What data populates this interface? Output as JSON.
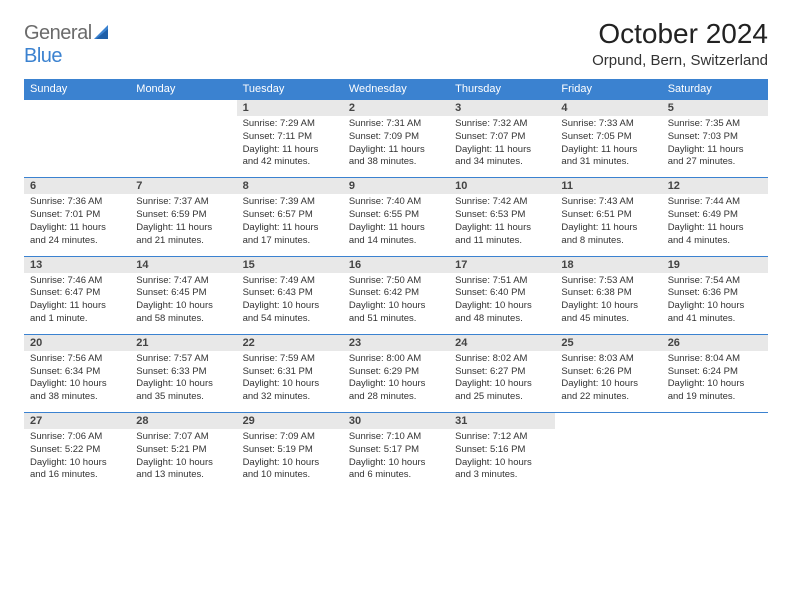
{
  "logo": {
    "part1": "General",
    "part2": "Blue"
  },
  "title": "October 2024",
  "location": "Orpund, Bern, Switzerland",
  "colors": {
    "header_bg": "#3b82d0",
    "header_text": "#ffffff",
    "daynum_bg": "#e8e8e8",
    "border": "#3b82d0",
    "text": "#333333",
    "logo_gray": "#6b6b6b",
    "logo_blue": "#3b82d0",
    "background": "#ffffff"
  },
  "typography": {
    "title_fontsize": 28,
    "location_fontsize": 15,
    "weekday_fontsize": 11,
    "daynum_fontsize": 11,
    "body_fontsize": 9.5
  },
  "weekdays": [
    "Sunday",
    "Monday",
    "Tuesday",
    "Wednesday",
    "Thursday",
    "Friday",
    "Saturday"
  ],
  "weeks": [
    [
      {
        "n": "",
        "sunrise": "",
        "sunset": "",
        "daylight": ""
      },
      {
        "n": "",
        "sunrise": "",
        "sunset": "",
        "daylight": ""
      },
      {
        "n": "1",
        "sunrise": "Sunrise: 7:29 AM",
        "sunset": "Sunset: 7:11 PM",
        "daylight": "Daylight: 11 hours and 42 minutes."
      },
      {
        "n": "2",
        "sunrise": "Sunrise: 7:31 AM",
        "sunset": "Sunset: 7:09 PM",
        "daylight": "Daylight: 11 hours and 38 minutes."
      },
      {
        "n": "3",
        "sunrise": "Sunrise: 7:32 AM",
        "sunset": "Sunset: 7:07 PM",
        "daylight": "Daylight: 11 hours and 34 minutes."
      },
      {
        "n": "4",
        "sunrise": "Sunrise: 7:33 AM",
        "sunset": "Sunset: 7:05 PM",
        "daylight": "Daylight: 11 hours and 31 minutes."
      },
      {
        "n": "5",
        "sunrise": "Sunrise: 7:35 AM",
        "sunset": "Sunset: 7:03 PM",
        "daylight": "Daylight: 11 hours and 27 minutes."
      }
    ],
    [
      {
        "n": "6",
        "sunrise": "Sunrise: 7:36 AM",
        "sunset": "Sunset: 7:01 PM",
        "daylight": "Daylight: 11 hours and 24 minutes."
      },
      {
        "n": "7",
        "sunrise": "Sunrise: 7:37 AM",
        "sunset": "Sunset: 6:59 PM",
        "daylight": "Daylight: 11 hours and 21 minutes."
      },
      {
        "n": "8",
        "sunrise": "Sunrise: 7:39 AM",
        "sunset": "Sunset: 6:57 PM",
        "daylight": "Daylight: 11 hours and 17 minutes."
      },
      {
        "n": "9",
        "sunrise": "Sunrise: 7:40 AM",
        "sunset": "Sunset: 6:55 PM",
        "daylight": "Daylight: 11 hours and 14 minutes."
      },
      {
        "n": "10",
        "sunrise": "Sunrise: 7:42 AM",
        "sunset": "Sunset: 6:53 PM",
        "daylight": "Daylight: 11 hours and 11 minutes."
      },
      {
        "n": "11",
        "sunrise": "Sunrise: 7:43 AM",
        "sunset": "Sunset: 6:51 PM",
        "daylight": "Daylight: 11 hours and 8 minutes."
      },
      {
        "n": "12",
        "sunrise": "Sunrise: 7:44 AM",
        "sunset": "Sunset: 6:49 PM",
        "daylight": "Daylight: 11 hours and 4 minutes."
      }
    ],
    [
      {
        "n": "13",
        "sunrise": "Sunrise: 7:46 AM",
        "sunset": "Sunset: 6:47 PM",
        "daylight": "Daylight: 11 hours and 1 minute."
      },
      {
        "n": "14",
        "sunrise": "Sunrise: 7:47 AM",
        "sunset": "Sunset: 6:45 PM",
        "daylight": "Daylight: 10 hours and 58 minutes."
      },
      {
        "n": "15",
        "sunrise": "Sunrise: 7:49 AM",
        "sunset": "Sunset: 6:43 PM",
        "daylight": "Daylight: 10 hours and 54 minutes."
      },
      {
        "n": "16",
        "sunrise": "Sunrise: 7:50 AM",
        "sunset": "Sunset: 6:42 PM",
        "daylight": "Daylight: 10 hours and 51 minutes."
      },
      {
        "n": "17",
        "sunrise": "Sunrise: 7:51 AM",
        "sunset": "Sunset: 6:40 PM",
        "daylight": "Daylight: 10 hours and 48 minutes."
      },
      {
        "n": "18",
        "sunrise": "Sunrise: 7:53 AM",
        "sunset": "Sunset: 6:38 PM",
        "daylight": "Daylight: 10 hours and 45 minutes."
      },
      {
        "n": "19",
        "sunrise": "Sunrise: 7:54 AM",
        "sunset": "Sunset: 6:36 PM",
        "daylight": "Daylight: 10 hours and 41 minutes."
      }
    ],
    [
      {
        "n": "20",
        "sunrise": "Sunrise: 7:56 AM",
        "sunset": "Sunset: 6:34 PM",
        "daylight": "Daylight: 10 hours and 38 minutes."
      },
      {
        "n": "21",
        "sunrise": "Sunrise: 7:57 AM",
        "sunset": "Sunset: 6:33 PM",
        "daylight": "Daylight: 10 hours and 35 minutes."
      },
      {
        "n": "22",
        "sunrise": "Sunrise: 7:59 AM",
        "sunset": "Sunset: 6:31 PM",
        "daylight": "Daylight: 10 hours and 32 minutes."
      },
      {
        "n": "23",
        "sunrise": "Sunrise: 8:00 AM",
        "sunset": "Sunset: 6:29 PM",
        "daylight": "Daylight: 10 hours and 28 minutes."
      },
      {
        "n": "24",
        "sunrise": "Sunrise: 8:02 AM",
        "sunset": "Sunset: 6:27 PM",
        "daylight": "Daylight: 10 hours and 25 minutes."
      },
      {
        "n": "25",
        "sunrise": "Sunrise: 8:03 AM",
        "sunset": "Sunset: 6:26 PM",
        "daylight": "Daylight: 10 hours and 22 minutes."
      },
      {
        "n": "26",
        "sunrise": "Sunrise: 8:04 AM",
        "sunset": "Sunset: 6:24 PM",
        "daylight": "Daylight: 10 hours and 19 minutes."
      }
    ],
    [
      {
        "n": "27",
        "sunrise": "Sunrise: 7:06 AM",
        "sunset": "Sunset: 5:22 PM",
        "daylight": "Daylight: 10 hours and 16 minutes."
      },
      {
        "n": "28",
        "sunrise": "Sunrise: 7:07 AM",
        "sunset": "Sunset: 5:21 PM",
        "daylight": "Daylight: 10 hours and 13 minutes."
      },
      {
        "n": "29",
        "sunrise": "Sunrise: 7:09 AM",
        "sunset": "Sunset: 5:19 PM",
        "daylight": "Daylight: 10 hours and 10 minutes."
      },
      {
        "n": "30",
        "sunrise": "Sunrise: 7:10 AM",
        "sunset": "Sunset: 5:17 PM",
        "daylight": "Daylight: 10 hours and 6 minutes."
      },
      {
        "n": "31",
        "sunrise": "Sunrise: 7:12 AM",
        "sunset": "Sunset: 5:16 PM",
        "daylight": "Daylight: 10 hours and 3 minutes."
      },
      {
        "n": "",
        "sunrise": "",
        "sunset": "",
        "daylight": ""
      },
      {
        "n": "",
        "sunrise": "",
        "sunset": "",
        "daylight": ""
      }
    ]
  ]
}
